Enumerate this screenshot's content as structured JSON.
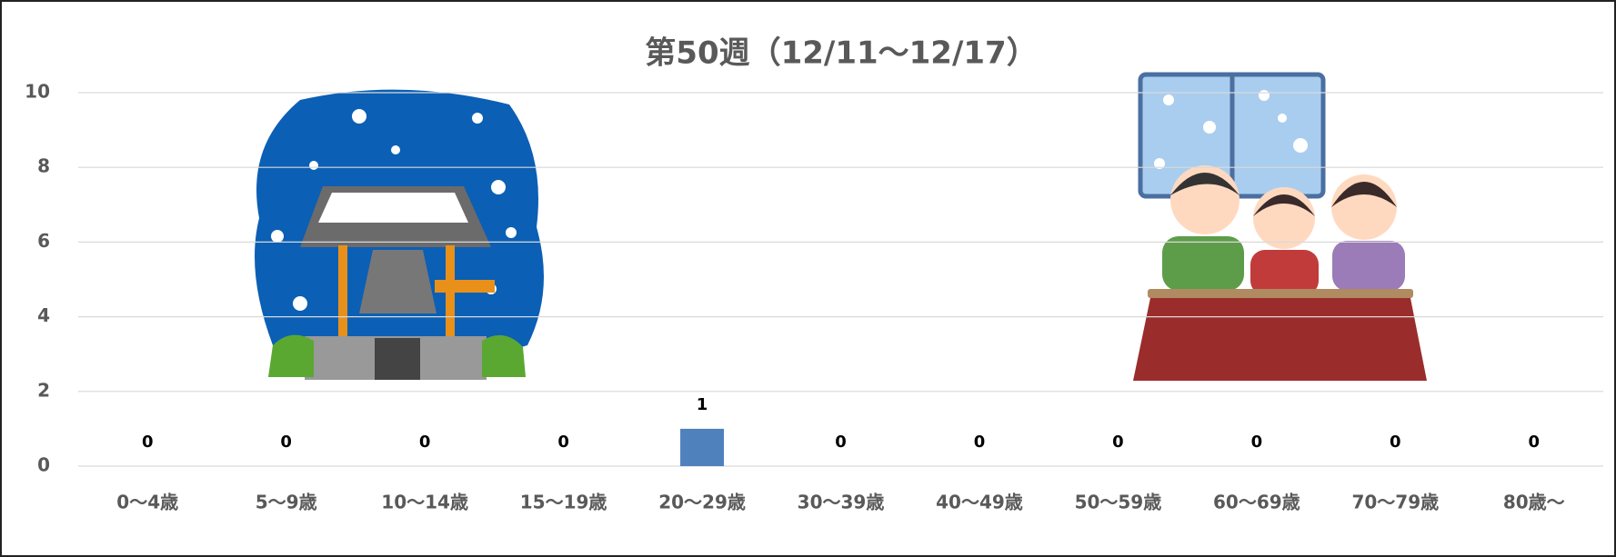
{
  "chart_data": {
    "type": "bar",
    "title": "第50週（12/11～12/17）",
    "categories": [
      "0～4歳",
      "5～9歳",
      "10～14歳",
      "15～19歳",
      "20～29歳",
      "30～39歳",
      "40～49歳",
      "50～59歳",
      "60～69歳",
      "70～79歳",
      "80歳～"
    ],
    "values": [
      0,
      0,
      0,
      0,
      1,
      0,
      0,
      0,
      0,
      0,
      0
    ],
    "color": "#4f81bd",
    "ylim": [
      0,
      10
    ],
    "yticks": [
      0,
      2,
      4,
      6,
      8,
      10
    ],
    "grid": true
  }
}
